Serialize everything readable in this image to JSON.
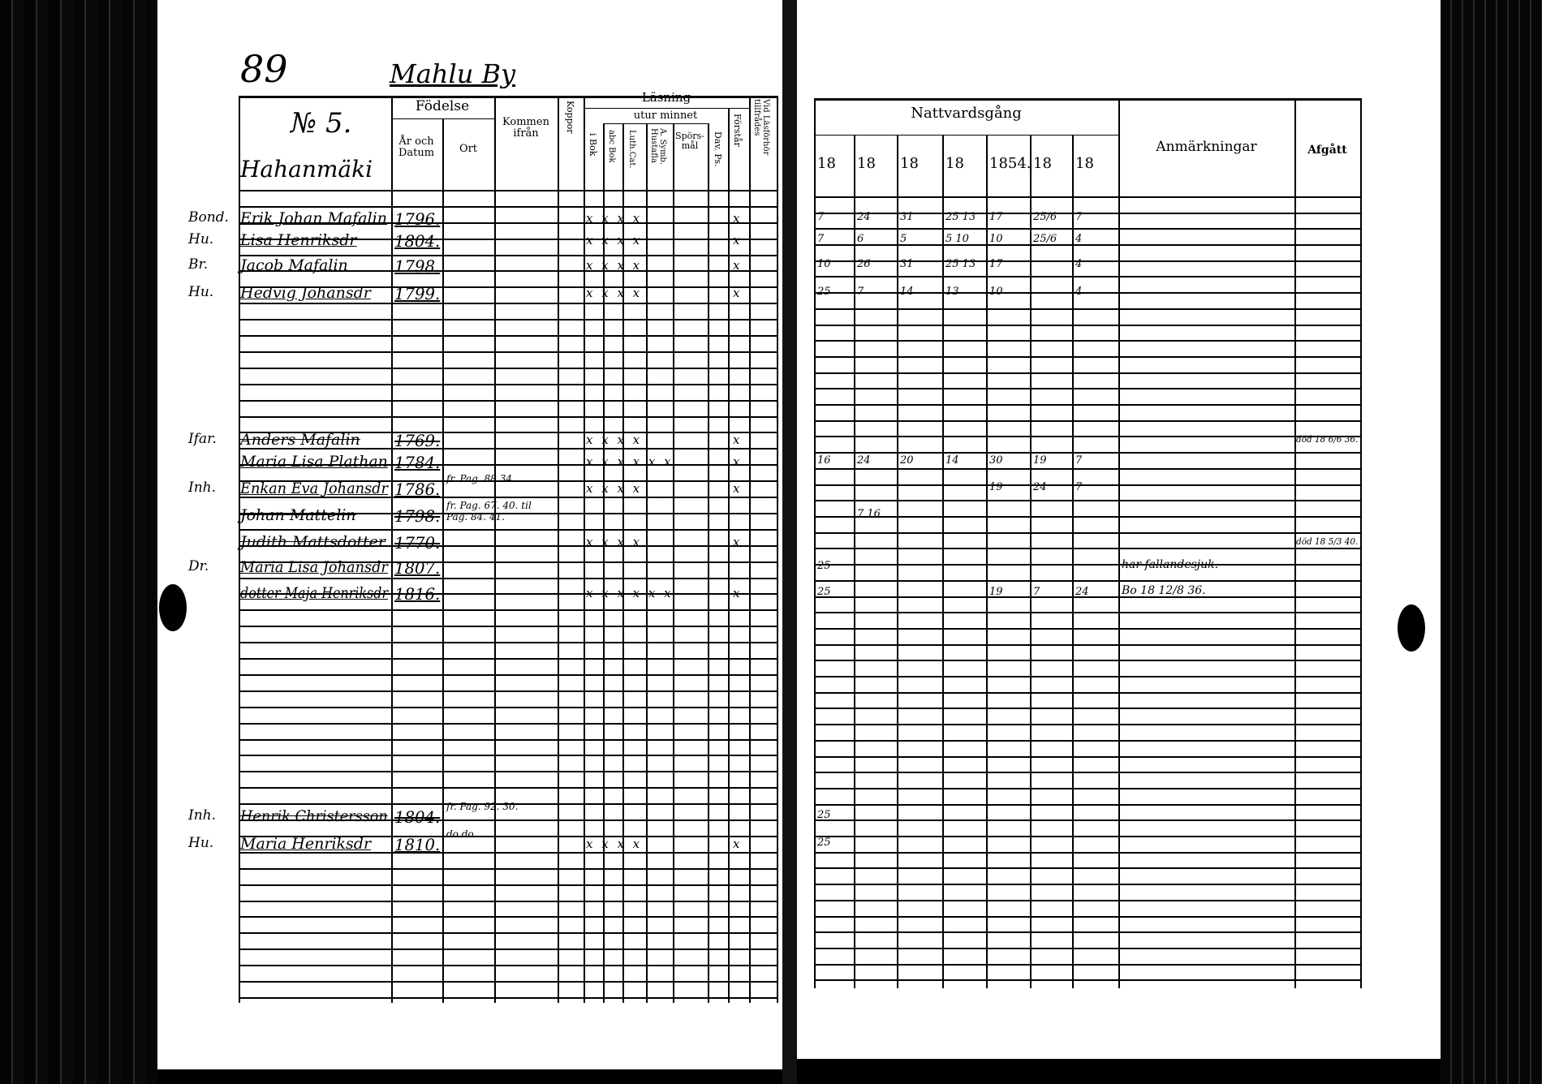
{
  "header": {
    "page_number": "89",
    "village": "Mahlu By",
    "household_no": "№ 5.",
    "farm": "Hahanmäki"
  },
  "left_columns": {
    "fodelse": "Födelse",
    "ar_och_datum": "År och Datum",
    "ort": "Ort",
    "kommen_ifran": "Kommen ifrån",
    "koppor": "Koppor",
    "lasning": "Läsning",
    "utur_minnet": "utur minnet",
    "i_bok": "i Bok",
    "abc_bok": "abc Bok",
    "luth_cat": "Luth.Cat.",
    "symb_hustafla": "A. Symb. Hustafla",
    "sporsmal": "Spörs-mål",
    "dav_ps": "Dav. Ps.",
    "forstar": "Förstår",
    "vid_lasforhor": "Vid Läsförhör tillfrådes"
  },
  "right_columns": {
    "nattvardsgang": "Nattvardsgång",
    "years": [
      "18",
      "18",
      "18",
      "18",
      "1854.",
      "18",
      "18"
    ],
    "anmarkningar": "Anmärkningar",
    "afgatt": "Afgått"
  },
  "entries": [
    {
      "prefix": "Bond.",
      "name": "Erik Johan Mafalin",
      "year": "1796.",
      "marks": "x x x x",
      "comm": [
        "7",
        "24",
        "31",
        "25 13",
        "17",
        "25/6",
        "7"
      ]
    },
    {
      "prefix": "Hu.",
      "name": "Lisa Henriksdr",
      "year": "1804.",
      "marks": "x x x x",
      "comm": [
        "7",
        "6",
        "5",
        "5 10",
        "10",
        "25/6",
        "4"
      ]
    },
    {
      "prefix": "Br.",
      "name": "Jacob Mafalin",
      "year": "1798.",
      "marks": "x x x x",
      "comm": [
        "10",
        "26",
        "31",
        "25 13",
        "17",
        "",
        "4"
      ]
    },
    {
      "prefix": "Hu.",
      "name": "Hedvig Johansdr",
      "year": "1799.",
      "marks": "x x x x",
      "comm": [
        "25",
        "7",
        "14",
        "13",
        "10",
        "",
        "4"
      ]
    },
    {
      "prefix": "Ifar.",
      "name": "Anders Mafalin",
      "year": "1769.",
      "marks": "x x x x",
      "strike": true,
      "afgatt": "död 18 6/6 36."
    },
    {
      "prefix": "",
      "name": "Maria Lisa Plathan",
      "year": "1784.",
      "marks": "x x x x x x",
      "comm": [
        "16",
        "24",
        "20",
        "14",
        "30",
        "19",
        "7"
      ]
    },
    {
      "prefix": "Inh.",
      "name": "Enkan Eva Johansdr",
      "year": "1786.",
      "kommen": "fr. Pag. 88.34.",
      "marks": "x x x x",
      "comm": [
        "",
        "",
        "",
        "",
        "19",
        "24",
        "7"
      ]
    },
    {
      "prefix": "",
      "name": "Johan Mattelin",
      "year": "1798.",
      "kommen": "fr. Pag. 67. 40. til Pag. 84. 41.",
      "strike": true,
      "comm": [
        "",
        "7 16",
        "",
        "",
        "",
        "",
        ""
      ]
    },
    {
      "prefix": "",
      "name": "Judith Mattsdotter",
      "year": "1770.",
      "marks": "x x x x",
      "strike": true,
      "afgatt": "död 18 5/3 40."
    },
    {
      "prefix": "Dr.",
      "name": "Maria Lisa Johansdr",
      "year": "1807.",
      "comm": [
        "25",
        "",
        "",
        "",
        "",
        "",
        ""
      ],
      "anm": "har fallandesjuk."
    },
    {
      "prefix": "",
      "name": "dotter Maja Henriksdr",
      "year": "1816.",
      "marks": "x x x x x x",
      "comm": [
        "25",
        "",
        "",
        "",
        "19",
        "7",
        "24"
      ],
      "anm": "Bo 18 12/8 36."
    },
    {
      "prefix": "Inh.",
      "name": "Henrik Christersson",
      "year": "1804.",
      "kommen": "fr. Pag. 92. 30.",
      "strike": true,
      "comm": [
        "25",
        "",
        "",
        "",
        "",
        "",
        ""
      ]
    },
    {
      "prefix": "Hu.",
      "name": "Maria Henriksdr",
      "year": "1810.",
      "kommen": "do  do",
      "marks": "x x x x",
      "comm": [
        "25",
        "",
        "",
        "",
        "",
        "",
        ""
      ]
    }
  ]
}
